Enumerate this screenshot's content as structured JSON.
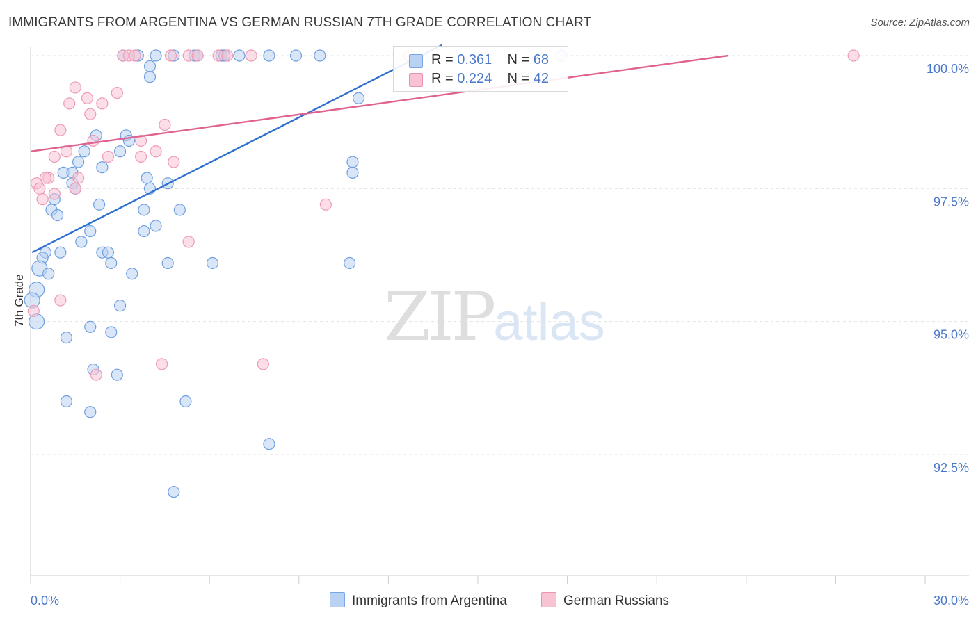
{
  "header": {
    "title": "IMMIGRANTS FROM ARGENTINA VS GERMAN RUSSIAN 7TH GRADE CORRELATION CHART",
    "source": "Source: ZipAtlas.com"
  },
  "watermark": {
    "zip": "ZIP",
    "atlas": "atlas"
  },
  "legend": {
    "rows": [
      {
        "r_label": "R =",
        "r_value": "0.361",
        "n_label": "N =",
        "n_value": "68",
        "color": "#9dc0ef"
      },
      {
        "r_label": "R =",
        "r_value": "0.224",
        "n_label": "N =",
        "n_value": "42",
        "color": "#f4a9c0"
      }
    ]
  },
  "bottom_legend": {
    "items": [
      {
        "label": "Immigrants from Argentina",
        "color": "#9dc0ef"
      },
      {
        "label": "German Russians",
        "color": "#f4a9c0"
      }
    ]
  },
  "chart_data": {
    "type": "scatter",
    "title": "IMMIGRANTS FROM ARGENTINA VS GERMAN RUSSIAN 7TH GRADE CORRELATION CHART",
    "xlabel": "",
    "ylabel": "7th Grade",
    "xlim": [
      0,
      30
    ],
    "ylim": [
      90.5,
      100.4
    ],
    "x_tick_labels": [
      "0.0%",
      "30.0%"
    ],
    "y_ticks": [
      92.5,
      95.0,
      97.5,
      100.0
    ],
    "y_tick_labels": [
      "92.5%",
      "95.0%",
      "97.5%",
      "100.0%"
    ],
    "grid": true,
    "legend_position": "top-center",
    "colors": {
      "blue": "#4a86d8",
      "blue_fill": "#b9d2f3",
      "pink": "#e46f96",
      "pink_fill": "#f8c3d3",
      "tick_text": "#4a78c9"
    },
    "series": [
      {
        "name": "Immigrants from Argentina",
        "color": "#4a86d8",
        "trend": {
          "x": [
            0.05,
            13.8
          ],
          "y": [
            96.3,
            100.2
          ]
        },
        "points": [
          [
            3.1,
            100.0
          ],
          [
            3.6,
            100.0
          ],
          [
            4.2,
            100.0
          ],
          [
            4.8,
            100.0
          ],
          [
            5.5,
            100.0
          ],
          [
            6.4,
            100.0
          ],
          [
            7.0,
            100.0
          ],
          [
            8.0,
            100.0
          ],
          [
            8.9,
            100.0
          ],
          [
            9.7,
            100.0
          ],
          [
            5.6,
            100.0
          ],
          [
            6.5,
            100.0
          ],
          [
            17.8,
            100.0
          ],
          [
            4.0,
            99.8
          ],
          [
            4.0,
            99.6
          ],
          [
            2.2,
            98.5
          ],
          [
            3.2,
            98.5
          ],
          [
            3.3,
            98.4
          ],
          [
            1.8,
            98.2
          ],
          [
            3.0,
            98.2
          ],
          [
            1.6,
            98.0
          ],
          [
            2.4,
            97.9
          ],
          [
            1.1,
            97.8
          ],
          [
            1.4,
            97.8
          ],
          [
            3.9,
            97.7
          ],
          [
            4.6,
            97.6
          ],
          [
            1.4,
            97.6
          ],
          [
            1.5,
            97.5
          ],
          [
            4.0,
            97.5
          ],
          [
            0.8,
            97.3
          ],
          [
            2.3,
            97.2
          ],
          [
            0.7,
            97.1
          ],
          [
            0.9,
            97.0
          ],
          [
            3.8,
            97.1
          ],
          [
            5.0,
            97.1
          ],
          [
            2.0,
            96.7
          ],
          [
            3.8,
            96.7
          ],
          [
            4.2,
            96.8
          ],
          [
            1.7,
            96.5
          ],
          [
            0.5,
            96.3
          ],
          [
            2.4,
            96.3
          ],
          [
            2.6,
            96.3
          ],
          [
            1.0,
            96.3
          ],
          [
            0.4,
            96.2
          ],
          [
            2.7,
            96.1
          ],
          [
            4.6,
            96.1
          ],
          [
            6.1,
            96.1
          ],
          [
            0.3,
            96.0
          ],
          [
            0.6,
            95.9
          ],
          [
            3.4,
            95.9
          ],
          [
            0.2,
            95.6
          ],
          [
            0.05,
            95.4
          ],
          [
            3.0,
            95.3
          ],
          [
            0.2,
            95.0
          ],
          [
            2.0,
            94.9
          ],
          [
            2.7,
            94.8
          ],
          [
            1.2,
            94.7
          ],
          [
            2.1,
            94.1
          ],
          [
            2.9,
            94.0
          ],
          [
            1.2,
            93.5
          ],
          [
            2.0,
            93.3
          ],
          [
            5.2,
            93.5
          ],
          [
            8.0,
            92.7
          ],
          [
            4.8,
            91.8
          ],
          [
            10.7,
            96.1
          ],
          [
            10.8,
            98.0
          ],
          [
            10.8,
            97.8
          ],
          [
            11.0,
            99.2
          ]
        ]
      },
      {
        "name": "German Russians",
        "color": "#e46f96",
        "trend": {
          "x": [
            0.0,
            23.4
          ],
          "y": [
            98.2,
            100.0
          ]
        },
        "points": [
          [
            3.1,
            100.0
          ],
          [
            3.3,
            100.0
          ],
          [
            3.5,
            100.0
          ],
          [
            4.7,
            100.0
          ],
          [
            5.3,
            100.0
          ],
          [
            5.6,
            100.0
          ],
          [
            6.3,
            100.0
          ],
          [
            6.6,
            100.0
          ],
          [
            7.4,
            100.0
          ],
          [
            12.7,
            100.0
          ],
          [
            27.6,
            100.0
          ],
          [
            1.5,
            99.4
          ],
          [
            2.9,
            99.3
          ],
          [
            1.9,
            99.2
          ],
          [
            1.3,
            99.1
          ],
          [
            2.4,
            99.1
          ],
          [
            2.0,
            98.9
          ],
          [
            4.5,
            98.7
          ],
          [
            1.0,
            98.6
          ],
          [
            2.1,
            98.4
          ],
          [
            3.7,
            98.4
          ],
          [
            1.2,
            98.2
          ],
          [
            4.2,
            98.2
          ],
          [
            2.6,
            98.1
          ],
          [
            0.8,
            98.1
          ],
          [
            3.7,
            98.1
          ],
          [
            4.8,
            98.0
          ],
          [
            1.6,
            97.7
          ],
          [
            0.6,
            97.7
          ],
          [
            0.5,
            97.7
          ],
          [
            0.2,
            97.6
          ],
          [
            0.8,
            97.4
          ],
          [
            9.9,
            97.2
          ],
          [
            5.3,
            96.5
          ],
          [
            1.0,
            95.4
          ],
          [
            0.1,
            95.2
          ],
          [
            4.4,
            94.2
          ],
          [
            7.8,
            94.2
          ],
          [
            2.2,
            94.0
          ],
          [
            1.5,
            97.5
          ],
          [
            0.3,
            97.5
          ],
          [
            0.4,
            97.3
          ]
        ]
      }
    ]
  }
}
